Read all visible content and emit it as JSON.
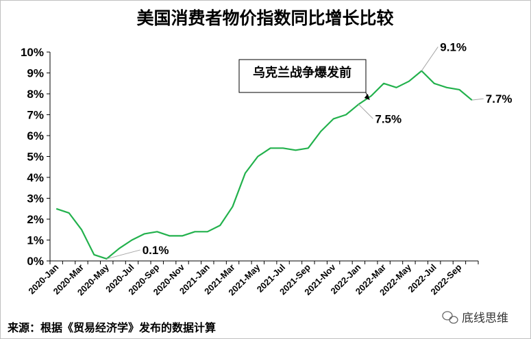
{
  "chart_data": {
    "type": "line",
    "title": "美国消费者物价指数同比增长比较",
    "ylim": [
      0,
      10
    ],
    "y_ticks": [
      "0%",
      "1%",
      "2%",
      "3%",
      "4%",
      "5%",
      "6%",
      "7%",
      "8%",
      "9%",
      "10%"
    ],
    "x_tick_labels": [
      "2020-Jan",
      "2020-Mar",
      "2020-May",
      "2020-Jul",
      "2020-Sep",
      "2020-Nov",
      "2021-Jan",
      "2021-Mar",
      "2021-May",
      "2021-Jul",
      "2021-Sep",
      "2021-Nov",
      "2022-Jan",
      "2022-Mar",
      "2022-May",
      "2022-Jul",
      "2022-Sep"
    ],
    "categories": [
      "2020-Jan",
      "2020-Feb",
      "2020-Mar",
      "2020-Apr",
      "2020-May",
      "2020-Jun",
      "2020-Jul",
      "2020-Aug",
      "2020-Sep",
      "2020-Oct",
      "2020-Nov",
      "2020-Dec",
      "2021-Jan",
      "2021-Feb",
      "2021-Mar",
      "2021-Apr",
      "2021-May",
      "2021-Jun",
      "2021-Jul",
      "2021-Aug",
      "2021-Sep",
      "2021-Oct",
      "2021-Nov",
      "2021-Dec",
      "2022-Jan",
      "2022-Feb",
      "2022-Mar",
      "2022-Apr",
      "2022-May",
      "2022-Jun",
      "2022-Jul",
      "2022-Aug",
      "2022-Sep",
      "2022-Oct"
    ],
    "series": [
      {
        "color": "#22b14c",
        "values": [
          2.5,
          2.3,
          1.5,
          0.3,
          0.1,
          0.6,
          1.0,
          1.3,
          1.4,
          1.2,
          1.2,
          1.4,
          1.4,
          1.7,
          2.6,
          4.2,
          5.0,
          5.4,
          5.4,
          5.3,
          5.4,
          6.2,
          6.8,
          7.0,
          7.5,
          7.9,
          8.5,
          8.3,
          8.6,
          9.1,
          8.5,
          8.3,
          8.2,
          7.7
        ]
      }
    ],
    "data_labels": [
      {
        "category": "2020-May",
        "text": "0.1%"
      },
      {
        "category": "2022-Jan",
        "text": "7.5%"
      },
      {
        "category": "2022-Jun",
        "text": "9.1%"
      },
      {
        "category": "2022-Oct",
        "text": "7.7%"
      }
    ],
    "annotation": {
      "text": "乌克兰战争爆发前",
      "category": "2022-Feb"
    },
    "grid": false
  },
  "footer": {
    "source": "来源：根据《贸易经济学》发布的数据计算",
    "watermark": "底线思维",
    "watermark_icon": "wechat-icon"
  }
}
